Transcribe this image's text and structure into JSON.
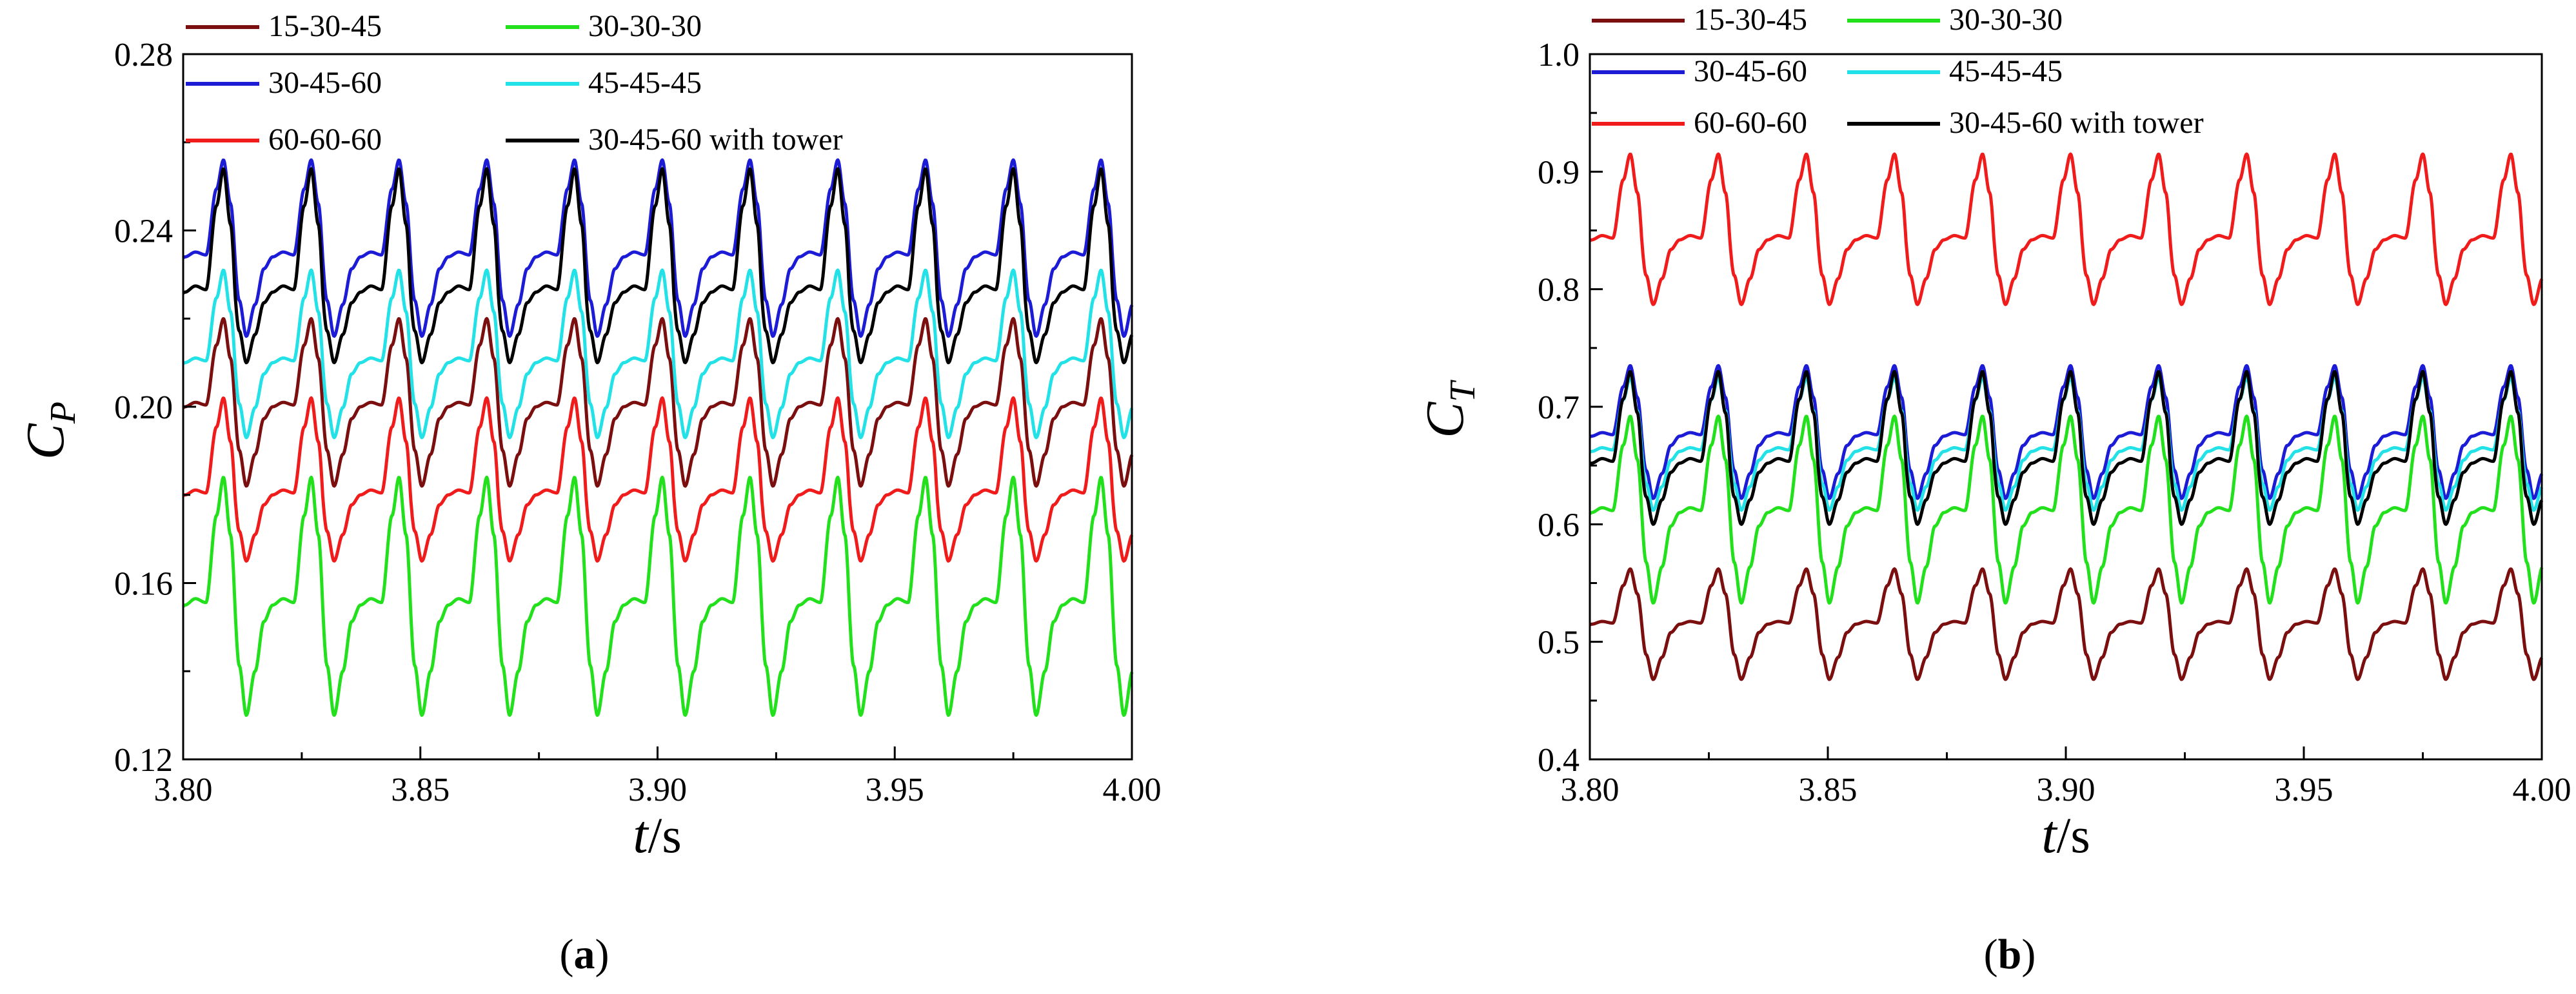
{
  "chart_data": [
    {
      "id": "a",
      "type": "line",
      "caption": "(a)",
      "caption_letter": "a",
      "ylabel_main": "C",
      "ylabel_sub": "P",
      "xlabel_main": "t",
      "xlabel_unit": "/s",
      "xlim": [
        3.8,
        4.0
      ],
      "ylim": [
        0.12,
        0.28
      ],
      "xticks": [
        3.8,
        3.85,
        3.9,
        3.95,
        4.0
      ],
      "xtick_labels": [
        "3.80",
        "3.85",
        "3.90",
        "3.95",
        "4.00"
      ],
      "yticks": [
        0.12,
        0.16,
        0.2,
        0.24,
        0.28
      ],
      "ytick_labels": [
        "0.12",
        "0.16",
        "0.20",
        "0.24",
        "0.28"
      ],
      "period_s": 0.0185,
      "phase_s": 3.8085,
      "legend_position": "top",
      "series": [
        {
          "name": "15-30-45",
          "color": "#7b0e0e",
          "baseline": 0.2,
          "peak": 0.22,
          "trough": 0.182
        },
        {
          "name": "30-30-30",
          "color": "#22e01c",
          "baseline": 0.155,
          "peak": 0.184,
          "trough": 0.13
        },
        {
          "name": "30-45-60",
          "color": "#1c1cd6",
          "baseline": 0.234,
          "peak": 0.256,
          "trough": 0.216
        },
        {
          "name": "45-45-45",
          "color": "#22e2e8",
          "baseline": 0.21,
          "peak": 0.231,
          "trough": 0.193
        },
        {
          "name": "60-60-60",
          "color": "#f01c1c",
          "baseline": 0.18,
          "peak": 0.202,
          "trough": 0.165
        },
        {
          "name": "30-45-60 with  tower",
          "color": "#000000",
          "baseline": 0.226,
          "peak": 0.254,
          "trough": 0.21
        }
      ]
    },
    {
      "id": "b",
      "type": "line",
      "caption": "(b)",
      "caption_letter": "b",
      "ylabel_main": "C",
      "ylabel_sub": "T",
      "xlabel_main": "t",
      "xlabel_unit": "/s",
      "xlim": [
        3.8,
        4.0
      ],
      "ylim": [
        0.4,
        1.0
      ],
      "xticks": [
        3.8,
        3.85,
        3.9,
        3.95,
        4.0
      ],
      "xtick_labels": [
        "3.80",
        "3.85",
        "3.90",
        "3.95",
        "4.00"
      ],
      "yticks": [
        0.4,
        0.5,
        0.6,
        0.7,
        0.8,
        0.9,
        1.0
      ],
      "ytick_labels": [
        "0.4",
        "0.5",
        "0.6",
        "0.7",
        "0.8",
        "0.9",
        "1.0"
      ],
      "period_s": 0.0185,
      "phase_s": 3.8085,
      "legend_position": "top",
      "series": [
        {
          "name": "15-30-45",
          "color": "#7b0e0e",
          "baseline": 0.515,
          "peak": 0.562,
          "trough": 0.468
        },
        {
          "name": "30-30-30",
          "color": "#22e01c",
          "baseline": 0.61,
          "peak": 0.692,
          "trough": 0.533
        },
        {
          "name": "30-45-60",
          "color": "#1c1cd6",
          "baseline": 0.675,
          "peak": 0.735,
          "trough": 0.622
        },
        {
          "name": "45-45-45",
          "color": "#22e2e8",
          "baseline": 0.662,
          "peak": 0.725,
          "trough": 0.612
        },
        {
          "name": "60-60-60",
          "color": "#f01c1c",
          "baseline": 0.842,
          "peak": 0.915,
          "trough": 0.787
        },
        {
          "name": "30-45-60 with tower",
          "color": "#000000",
          "baseline": 0.652,
          "peak": 0.73,
          "trough": 0.6
        }
      ]
    }
  ]
}
